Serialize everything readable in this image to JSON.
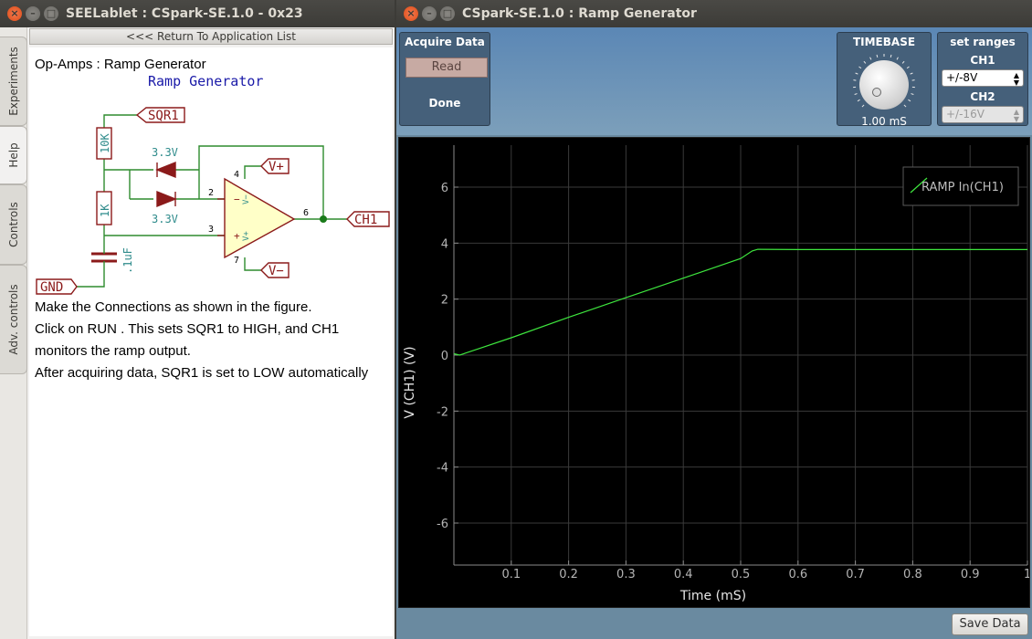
{
  "left_window": {
    "title": "SEELablet : CSpark-SE.1.0 - 0x23",
    "side_tabs": [
      "Experiments",
      "Help",
      "Controls",
      "Adv. controls"
    ],
    "active_tab": "Help",
    "return_label": "<<< Return To Application List",
    "help": {
      "heading": "Op-Amps : Ramp Generator",
      "schematic": {
        "title": "Ramp Generator",
        "sqr1": "SQR1",
        "gnd": "GND",
        "ch1": "CH1",
        "vplus": "V+",
        "vminus": "V−",
        "r1": "10K",
        "r2": "1K",
        "cap": ".1uF",
        "zener1": "3.3V",
        "zener2": "3.3V",
        "pin2": "2",
        "pin3": "3",
        "pin4": "4",
        "pin6": "6",
        "pin7": "7",
        "minus_sign": "−",
        "plus_sign": "+",
        "vminus_in": "V−",
        "vplus_in": "V+"
      },
      "instructions": [
        "Make the Connections as shown in the figure.",
        "Click on RUN . This sets SQR1 to HIGH, and CH1",
        "monitors the ramp output.",
        "After acquiring data, SQR1 is set to LOW automatically"
      ]
    }
  },
  "right_window": {
    "title": "CSpark-SE.1.0 : Ramp Generator",
    "acquire": {
      "title": "Acquire Data",
      "read_label": "Read",
      "status": "Done"
    },
    "timebase": {
      "title": "TIMEBASE",
      "value": "1.00 mS"
    },
    "ranges": {
      "title": "set ranges",
      "ch1_label": "CH1",
      "ch1_value": "+/-8V",
      "ch2_label": "CH2",
      "ch2_value": "+/-16V"
    },
    "save_label": "Save Data"
  },
  "chart_data": {
    "type": "line",
    "xlabel": "Time (mS)",
    "ylabel": "V (CH1) (V)",
    "xlim": [
      0,
      1
    ],
    "ylim": [
      -7.5,
      7.5
    ],
    "xticks": [
      0.1,
      0.2,
      0.3,
      0.4,
      0.5,
      0.6,
      0.7,
      0.8,
      0.9,
      1
    ],
    "yticks": [
      -6,
      -4,
      -2,
      0,
      2,
      4,
      6
    ],
    "grid": true,
    "legend_position": "top-right",
    "line_color": "#3ee63e",
    "series": [
      {
        "name": "RAMP In(CH1)",
        "x": [
          0.0,
          0.01,
          0.1,
          0.2,
          0.3,
          0.4,
          0.5,
          0.52,
          0.53,
          0.6,
          0.7,
          0.8,
          0.9,
          1.0
        ],
        "y": [
          0.05,
          0.0,
          0.62,
          1.35,
          2.05,
          2.75,
          3.45,
          3.72,
          3.78,
          3.77,
          3.77,
          3.77,
          3.77,
          3.77
        ]
      }
    ]
  }
}
